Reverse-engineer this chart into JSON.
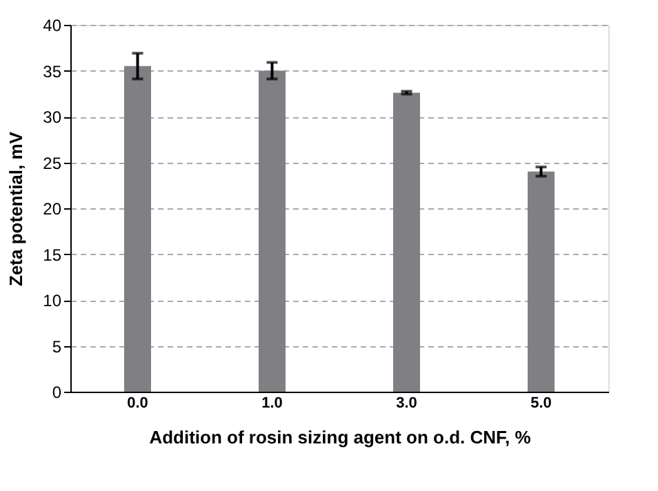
{
  "chart_data": {
    "type": "bar",
    "xlabel": "Addition of rosin sizing agent on o.d. CNF, %",
    "ylabel": "Zeta potential, mV",
    "categories": [
      "0.0",
      "1.0",
      "3.0",
      "5.0"
    ],
    "values": [
      35.5,
      35.0,
      32.6,
      24.0
    ],
    "errors": [
      1.4,
      0.9,
      0.15,
      0.5
    ],
    "color": "#7f7f84",
    "ylim": [
      0,
      40
    ],
    "yticks": [
      0,
      5,
      10,
      15,
      20,
      25,
      30,
      35,
      40
    ],
    "grid": "y"
  }
}
